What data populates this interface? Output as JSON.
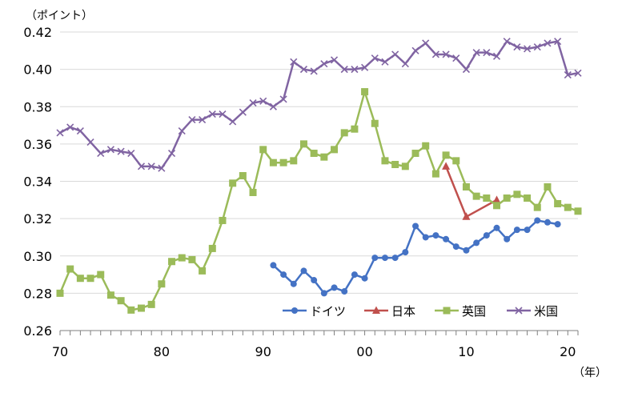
{
  "chart_data": {
    "type": "line",
    "title": "",
    "y_unit": "（ポイント）",
    "x_unit": "（年）",
    "ylim": [
      0.26,
      0.42
    ],
    "y_ticks": [
      0.26,
      0.28,
      0.3,
      0.32,
      0.34,
      0.36,
      0.38,
      0.4,
      0.42
    ],
    "y_tick_labels": [
      "0.26",
      "0.28",
      "0.30",
      "0.32",
      "0.34",
      "0.36",
      "0.38",
      "0.40",
      "0.42"
    ],
    "xlim": [
      1970,
      2021
    ],
    "x_ticks": [
      1970,
      1980,
      1990,
      2000,
      2010,
      2020
    ],
    "x_tick_labels": [
      "70",
      "80",
      "90",
      "00",
      "10",
      "20"
    ],
    "grid": "horizontal",
    "legend_position": "bottom-right",
    "series": [
      {
        "name": "ドイツ",
        "color": "#4472C4",
        "marker": "circle",
        "x": [
          1991,
          1992,
          1993,
          1994,
          1995,
          1996,
          1997,
          1998,
          1999,
          2000,
          2001,
          2002,
          2003,
          2004,
          2005,
          2006,
          2007,
          2008,
          2009,
          2010,
          2011,
          2012,
          2013,
          2014,
          2015,
          2016,
          2017,
          2018,
          2019
        ],
        "values": [
          0.295,
          0.29,
          0.285,
          0.292,
          0.287,
          0.28,
          0.283,
          0.281,
          0.29,
          0.288,
          0.299,
          0.299,
          0.299,
          0.302,
          0.316,
          0.31,
          0.311,
          0.309,
          0.305,
          0.303,
          0.307,
          0.311,
          0.315,
          0.309,
          0.314,
          0.314,
          0.319,
          0.318,
          0.317
        ]
      },
      {
        "name": "日本",
        "color": "#C0504D",
        "marker": "triangle",
        "x": [
          2008,
          2010,
          2013
        ],
        "values": [
          0.348,
          0.321,
          0.33
        ]
      },
      {
        "name": "英国",
        "color": "#9BBB59",
        "marker": "square",
        "x": [
          1970,
          1971,
          1972,
          1973,
          1974,
          1975,
          1976,
          1977,
          1978,
          1979,
          1980,
          1981,
          1982,
          1983,
          1984,
          1985,
          1986,
          1987,
          1988,
          1989,
          1990,
          1991,
          1992,
          1993,
          1994,
          1995,
          1996,
          1997,
          1998,
          1999,
          2000,
          2001,
          2002,
          2003,
          2004,
          2005,
          2006,
          2007,
          2008,
          2009,
          2010,
          2011,
          2012,
          2013,
          2014,
          2015,
          2016,
          2017,
          2018,
          2019,
          2020,
          2021
        ],
        "values": [
          0.28,
          0.293,
          0.288,
          0.288,
          0.29,
          0.279,
          0.276,
          0.271,
          0.272,
          0.274,
          0.285,
          0.297,
          0.299,
          0.298,
          0.292,
          0.304,
          0.319,
          0.339,
          0.343,
          0.334,
          0.357,
          0.35,
          0.35,
          0.351,
          0.36,
          0.355,
          0.353,
          0.357,
          0.366,
          0.368,
          0.388,
          0.371,
          0.351,
          0.349,
          0.348,
          0.355,
          0.359,
          0.344,
          0.354,
          0.351,
          0.337,
          0.332,
          0.331,
          0.327,
          0.331,
          0.333,
          0.331,
          0.326,
          0.337,
          0.328,
          0.326,
          0.324
        ]
      },
      {
        "name": "米国",
        "color": "#8064A2",
        "marker": "cross",
        "x": [
          1970,
          1971,
          1972,
          1973,
          1974,
          1975,
          1976,
          1977,
          1978,
          1979,
          1980,
          1981,
          1982,
          1983,
          1984,
          1985,
          1986,
          1987,
          1988,
          1989,
          1990,
          1991,
          1992,
          1993,
          1994,
          1995,
          1996,
          1997,
          1998,
          1999,
          2000,
          2001,
          2002,
          2003,
          2004,
          2005,
          2006,
          2007,
          2008,
          2009,
          2010,
          2011,
          2012,
          2013,
          2014,
          2015,
          2016,
          2017,
          2018,
          2019,
          2020,
          2021
        ],
        "values": [
          0.366,
          0.369,
          0.367,
          0.361,
          0.355,
          0.357,
          0.356,
          0.355,
          0.348,
          0.348,
          0.347,
          0.355,
          0.367,
          0.373,
          0.373,
          0.376,
          0.376,
          0.372,
          0.377,
          0.382,
          0.383,
          0.38,
          0.384,
          0.404,
          0.4,
          0.399,
          0.403,
          0.405,
          0.4,
          0.4,
          0.401,
          0.406,
          0.404,
          0.408,
          0.403,
          0.41,
          0.414,
          0.408,
          0.408,
          0.406,
          0.4,
          0.409,
          0.409,
          0.407,
          0.415,
          0.412,
          0.411,
          0.412,
          0.414,
          0.415,
          0.397,
          0.398
        ]
      }
    ]
  }
}
